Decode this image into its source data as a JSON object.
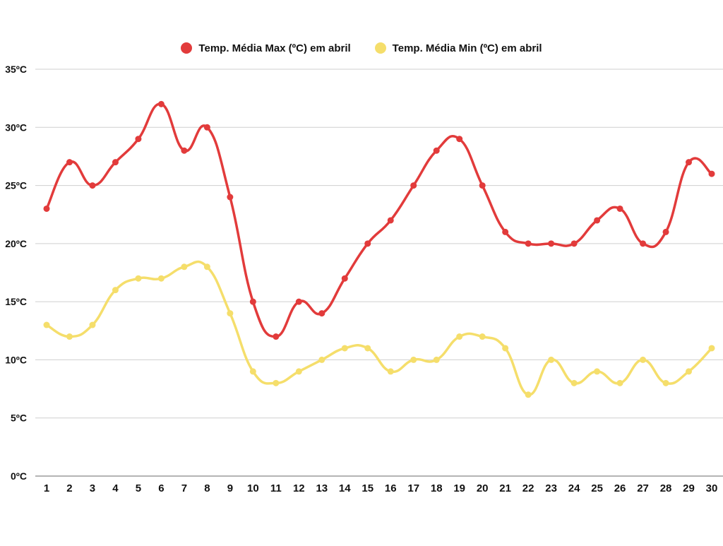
{
  "chart_data": {
    "type": "line",
    "title": "",
    "xlabel": "",
    "ylabel": "",
    "categories": [
      "1",
      "2",
      "3",
      "4",
      "5",
      "6",
      "7",
      "8",
      "9",
      "10",
      "11",
      "12",
      "13",
      "14",
      "15",
      "16",
      "17",
      "18",
      "19",
      "20",
      "21",
      "22",
      "23",
      "24",
      "25",
      "26",
      "27",
      "28",
      "29",
      "30"
    ],
    "ylim": [
      0,
      35
    ],
    "yticks": [
      0,
      5,
      10,
      15,
      20,
      25,
      30,
      35
    ],
    "ytick_labels": [
      "0ºC",
      "5ºC",
      "10ºC",
      "15ºC",
      "20ºC",
      "25ºC",
      "30ºC",
      "35ºC"
    ],
    "grid": "horizontal",
    "legend_position": "top-center",
    "series": [
      {
        "name": "Temp. Média Max (ºC) em abril",
        "color": "#e23b3b",
        "values": [
          23,
          27,
          25,
          27,
          29,
          32,
          28,
          30,
          24,
          15,
          12,
          15,
          14,
          17,
          20,
          22,
          25,
          28,
          29,
          25,
          21,
          20,
          20,
          20,
          22,
          23,
          20,
          21,
          27,
          26
        ]
      },
      {
        "name": "Temp. Média Min (ºC) em abril",
        "color": "#f5de6b",
        "values": [
          13,
          12,
          13,
          16,
          17,
          17,
          18,
          18,
          14,
          9,
          8,
          9,
          10,
          11,
          11,
          9,
          10,
          10,
          12,
          12,
          11,
          7,
          10,
          8,
          9,
          8,
          10,
          8,
          9,
          11
        ]
      }
    ]
  }
}
